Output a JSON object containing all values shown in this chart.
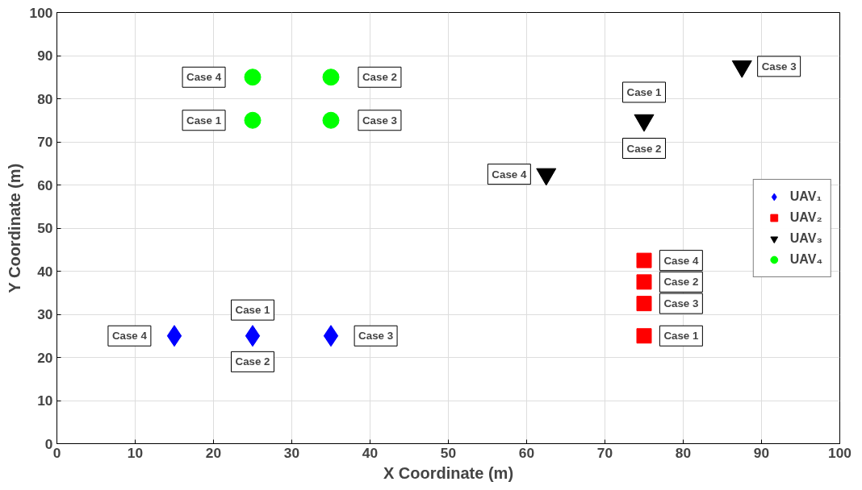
{
  "chart_data": {
    "type": "scatter",
    "xlabel": "X Coordinate (m)",
    "ylabel": "Y Coordinate (m)",
    "xlim": [
      0,
      100
    ],
    "ylim": [
      0,
      100
    ],
    "xticks": [
      0,
      10,
      20,
      30,
      40,
      50,
      60,
      70,
      80,
      90,
      100
    ],
    "yticks": [
      0,
      10,
      20,
      30,
      40,
      50,
      60,
      70,
      80,
      90,
      100
    ],
    "grid": true,
    "legend": "right",
    "series": [
      {
        "name": "UAV₁",
        "color": "#0000ff",
        "marker": "diamond",
        "x": [
          15,
          25,
          35
        ],
        "values": [
          25,
          25,
          25
        ]
      },
      {
        "name": "UAV₂",
        "color": "#ff0000",
        "marker": "square",
        "x": [
          75,
          75,
          75,
          75
        ],
        "values": [
          42.5,
          37.5,
          32.5,
          25
        ]
      },
      {
        "name": "UAV₃",
        "color": "#000000",
        "marker": "triangle",
        "x": [
          75,
          87.5,
          62.5
        ],
        "values": [
          75,
          87.5,
          62.5
        ]
      },
      {
        "name": "UAV₄",
        "color": "#00ff00",
        "marker": "circle",
        "x": [
          25,
          35,
          25,
          35
        ],
        "values": [
          85,
          85,
          75,
          75
        ]
      }
    ],
    "annotations": [
      {
        "text": "Case 4",
        "x": 15,
        "y": 25
      },
      {
        "text": "Case 1",
        "x": 25,
        "y": 25
      },
      {
        "text": "Case 2",
        "x": 25,
        "y": 25
      },
      {
        "text": "Case 3",
        "x": 35,
        "y": 25
      },
      {
        "text": "Case 4",
        "x": 75,
        "y": 42.5
      },
      {
        "text": "Case 2",
        "x": 75,
        "y": 37.5
      },
      {
        "text": "Case 3",
        "x": 75,
        "y": 32.5
      },
      {
        "text": "Case 1",
        "x": 75,
        "y": 25
      },
      {
        "text": "Case 1",
        "x": 75,
        "y": 75
      },
      {
        "text": "Case 2",
        "x": 75,
        "y": 75
      },
      {
        "text": "Case 3",
        "x": 87.5,
        "y": 87.5
      },
      {
        "text": "Case 4",
        "x": 62.5,
        "y": 62.5
      },
      {
        "text": "Case 4",
        "x": 25,
        "y": 85
      },
      {
        "text": "Case 2",
        "x": 35,
        "y": 85
      },
      {
        "text": "Case 1",
        "x": 25,
        "y": 75
      },
      {
        "text": "Case 3",
        "x": 35,
        "y": 75
      }
    ]
  }
}
